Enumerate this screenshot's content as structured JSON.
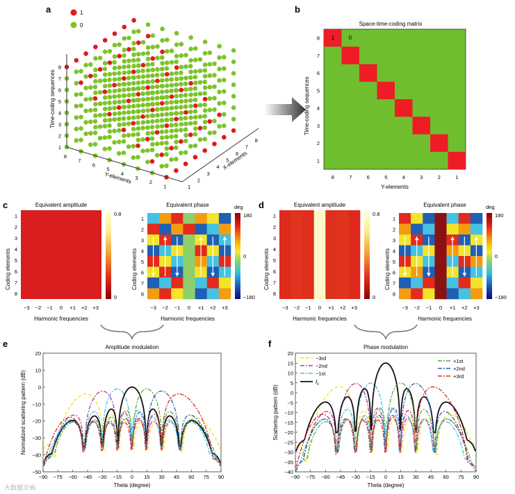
{
  "panel_labels": {
    "a": "a",
    "b": "b",
    "c": "c",
    "d": "d",
    "e": "e",
    "f": "f"
  },
  "legend_a": {
    "one": "1",
    "zero": "0"
  },
  "colors": {
    "one": "#e0191e",
    "zero": "#7dc32a",
    "green": "#6fbe2e",
    "red": "#ee1c25",
    "black": "#111111"
  },
  "panel_a": {
    "z_label": "Time-coding sequences",
    "y_label": "Y-elements",
    "x_label": "X-elements",
    "z_ticks": [
      "1",
      "2",
      "3",
      "4",
      "5",
      "6",
      "7",
      "8"
    ],
    "y_ticks": [
      "8",
      "7",
      "6",
      "5",
      "4",
      "3",
      "2",
      "1"
    ],
    "x_ticks": [
      "1",
      "2",
      "3",
      "4",
      "5",
      "6",
      "7",
      "8"
    ]
  },
  "panel_b": {
    "title": "Space-time-coding matrix",
    "y_label": "Time-coding sequences",
    "x_label": "Y-elements",
    "x_ticks": [
      "8",
      "7",
      "6",
      "5",
      "4",
      "3",
      "2",
      "1"
    ],
    "y_ticks": [
      "8",
      "7",
      "6",
      "5",
      "4",
      "3",
      "2",
      "1"
    ],
    "cell_one": "1",
    "cell_zero": "0"
  },
  "panel_c": {
    "amp_title": "Equivalent amplitude",
    "phase_title": "Equivalent phase",
    "y_label": "Coding elements",
    "x_label": "Harmonic frequencies",
    "x_ticks": [
      "−3",
      "−2",
      "−1",
      "0",
      "+1",
      "+2",
      "+3"
    ],
    "y_ticks": [
      "1",
      "2",
      "3",
      "4",
      "5",
      "6",
      "7",
      "8"
    ],
    "amp_cbar": [
      "0.8",
      "0"
    ],
    "phase_cbar": [
      "180",
      "0",
      "−180"
    ],
    "phase_unit": "deg"
  },
  "panel_d": {
    "amp_title": "Equivalent amplitude",
    "phase_title": "Equivalent phase",
    "y_label": "Coding elements",
    "x_label": "Harmonic frequencies",
    "x_ticks": [
      "−3",
      "−2",
      "−1",
      "0",
      "+1",
      "+2",
      "+3"
    ],
    "y_ticks": [
      "1",
      "2",
      "3",
      "4",
      "5",
      "6",
      "7",
      "8"
    ],
    "amp_cbar": [
      "0.8",
      "0"
    ],
    "phase_cbar": [
      "180",
      "0",
      "−180"
    ],
    "phase_unit": "deg"
  },
  "chart_data": [
    {
      "id": "e",
      "type": "line",
      "title": "Amplitude modulation",
      "xlabel": "Theta (degree)",
      "ylabel": "Normalized scattering pattern (dB)",
      "xlim": [
        -90,
        90
      ],
      "ylim": [
        -50,
        20
      ],
      "x_ticks": [
        "−90",
        "−75",
        "−60",
        "−45",
        "−30",
        "−15",
        "0",
        "15",
        "30",
        "45",
        "60",
        "75",
        "90"
      ],
      "y_ticks": [
        "20",
        "10",
        "0",
        "−10",
        "−20",
        "−30",
        "−40",
        "−50"
      ],
      "series": [
        {
          "name": "−3rd",
          "color": "#f2e11d",
          "dash": "5,3",
          "peak": -47,
          "level": -3
        },
        {
          "name": "−2nd",
          "color": "#b6379a",
          "dash": "6,2,2,2",
          "peak": -30,
          "level": -2
        },
        {
          "name": "−1st",
          "color": "#41c0e6",
          "dash": "6,2,2,2",
          "peak": -15,
          "level": -1
        },
        {
          "name": "fc",
          "color": "#111111",
          "dash": "",
          "peak": 0,
          "level": 0
        },
        {
          "name": "+1st",
          "color": "#5aa832",
          "dash": "6,2,2,2",
          "peak": 15,
          "level": -1
        },
        {
          "name": "+2nd",
          "color": "#2a5fae",
          "dash": "6,2,2,2",
          "peak": 30,
          "level": -2
        },
        {
          "name": "+3rd",
          "color": "#d8262a",
          "dash": "6,2,2,2",
          "peak": 48,
          "level": -3
        }
      ]
    },
    {
      "id": "f",
      "type": "line",
      "title": "Phase modulation",
      "xlabel": "Theta (degree)",
      "ylabel": "Scattering pattern (dB)",
      "xlim": [
        -90,
        90
      ],
      "ylim": [
        -40,
        20
      ],
      "x_ticks": [
        "−90",
        "−75",
        "−60",
        "−45",
        "−30",
        "−15",
        "0",
        "15",
        "30",
        "45",
        "60",
        "75",
        "90"
      ],
      "y_ticks": [
        "20",
        "15",
        "10",
        "5",
        "0",
        "−5",
        "−10",
        "−15",
        "−20",
        "−25",
        "−30",
        "−35",
        "−40"
      ],
      "legend_left": [
        "−3rd",
        "−2nd",
        "−1st",
        "fc"
      ],
      "legend_right": [
        "+1st",
        "+2nd",
        "+3rd"
      ],
      "series": [
        {
          "name": "−3rd",
          "color": "#f2e11d",
          "dash": "5,3",
          "peak": -47,
          "level": 4
        },
        {
          "name": "−2nd",
          "color": "#b6379a",
          "dash": "6,2,2,2",
          "peak": -30,
          "level": 5
        },
        {
          "name": "−1st",
          "color": "#41c0e6",
          "dash": "6,2,2,2",
          "peak": -15,
          "level": 5
        },
        {
          "name": "fc",
          "color": "#111111",
          "dash": "",
          "peak": 0,
          "level": 15
        },
        {
          "name": "+1st",
          "color": "#5aa832",
          "dash": "6,2,2,2",
          "peak": 15,
          "level": 5
        },
        {
          "name": "+2nd",
          "color": "#2a5fae",
          "dash": "6,2,2,2",
          "peak": 30,
          "level": 5
        },
        {
          "name": "+3rd",
          "color": "#d8262a",
          "dash": "6,2,2,2",
          "peak": 48,
          "level": 4
        }
      ]
    }
  ],
  "legend_f": {
    "m3": "−3rd",
    "m2": "−2nd",
    "m1": "−1st",
    "fc": "f",
    "fc_sub": "c",
    "p1": "+1st",
    "p2": "+2nd",
    "p3": "+3rd"
  },
  "watermark": "大数据文摘"
}
